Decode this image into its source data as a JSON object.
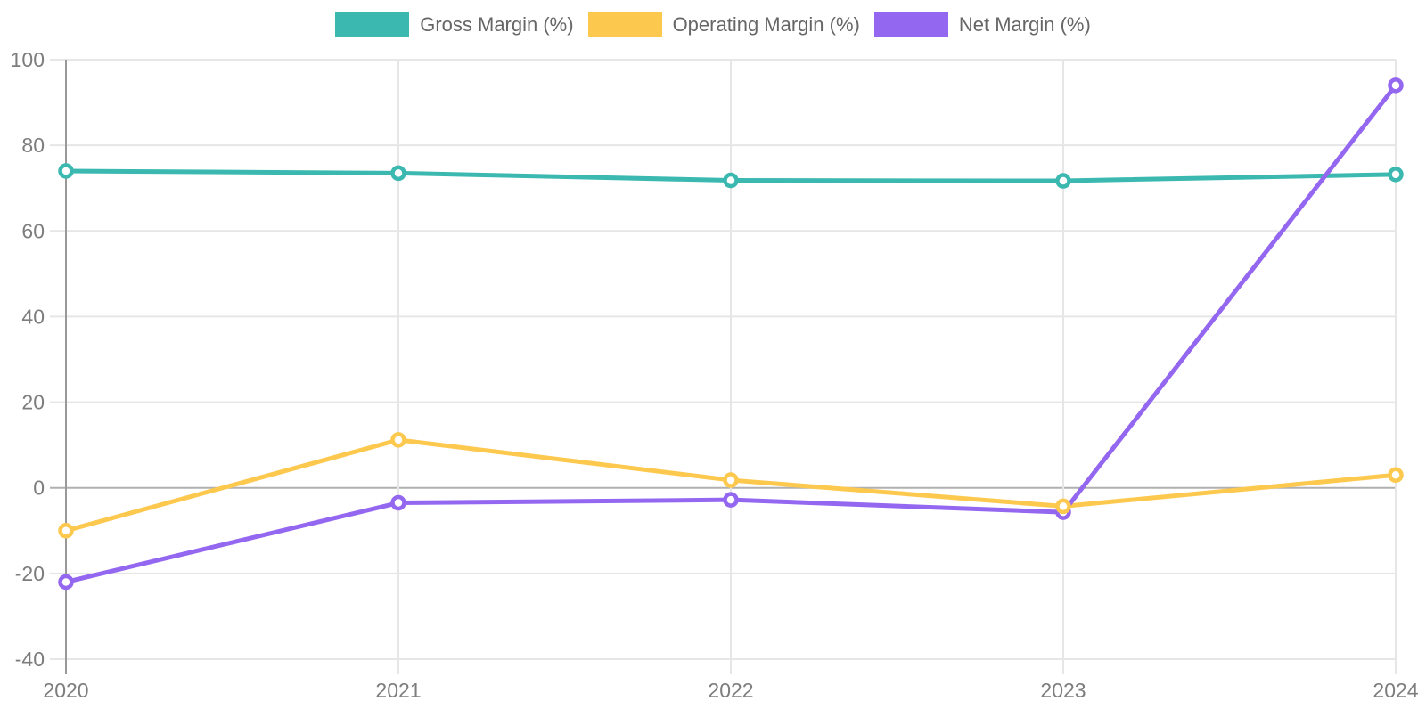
{
  "chart_data": {
    "type": "line",
    "categories": [
      "2020",
      "2021",
      "2022",
      "2023",
      "2024"
    ],
    "series": [
      {
        "name": "Gross Margin (%)",
        "color": "#3bb8b0",
        "values": [
          74,
          73.5,
          71.8,
          71.7,
          73.2
        ]
      },
      {
        "name": "Operating Margin (%)",
        "color": "#fdc84e",
        "values": [
          -10,
          11.2,
          1.8,
          -4.3,
          3
        ]
      },
      {
        "name": "Net Margin (%)",
        "color": "#9467f0",
        "values": [
          -22,
          -3.5,
          -2.8,
          -5.7,
          94
        ]
      }
    ],
    "title": "",
    "xlabel": "",
    "ylabel": "",
    "ylim": [
      -40,
      100
    ],
    "yticks": [
      100,
      80,
      60,
      40,
      20,
      0,
      -20,
      -40
    ],
    "grid": true,
    "legend_position": "top",
    "marker": "ring"
  },
  "theme": {
    "background": "#ffffff",
    "grid_color": "#e6e6e6",
    "zero_line_color": "#b0b0b0",
    "axis_color": "#999999",
    "tick_label_color": "#7d7d7d",
    "legend_text_color": "#666666"
  }
}
